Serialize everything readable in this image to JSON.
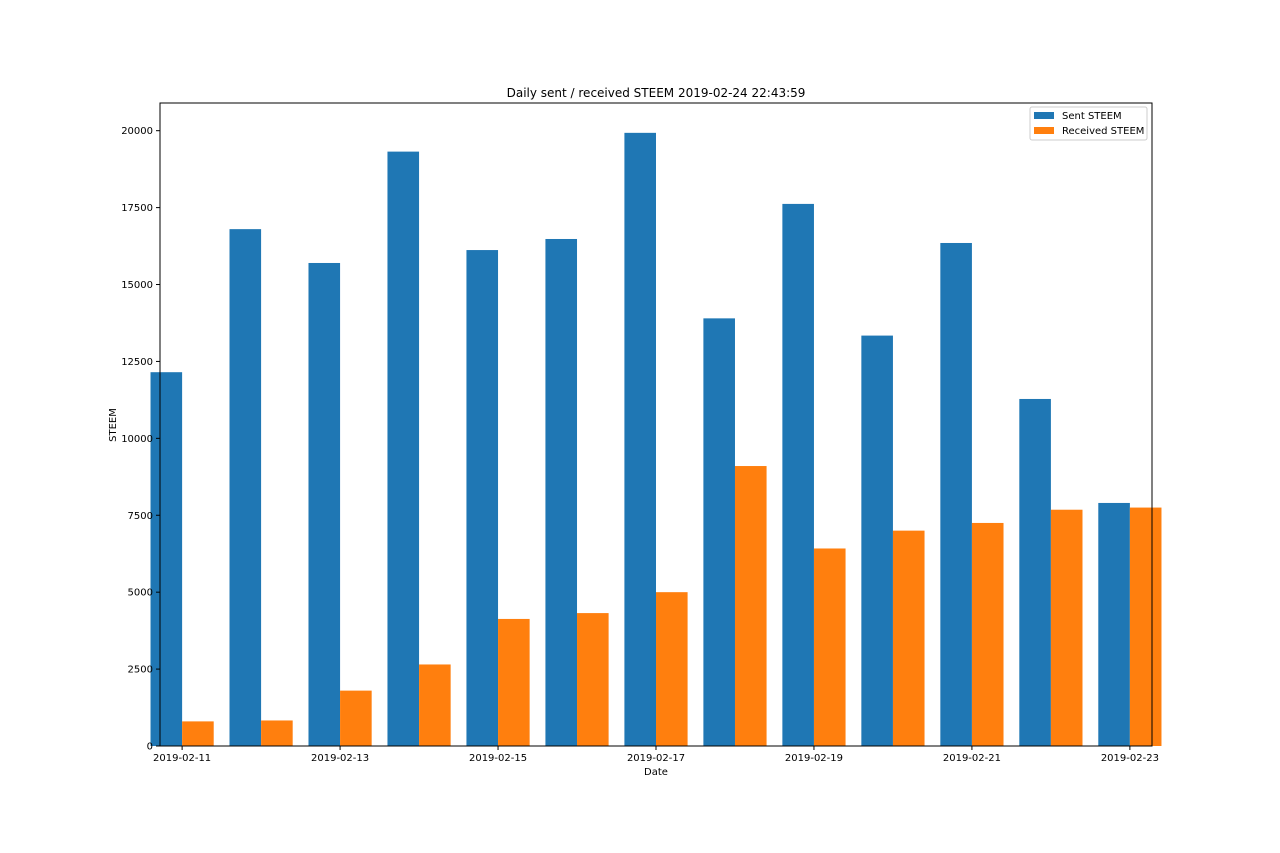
{
  "chart_data": {
    "type": "bar",
    "title": "Daily sent / received STEEM 2019-02-24 22:43:59",
    "xlabel": "Date",
    "ylabel": "STEEM",
    "ylim": [
      0,
      20900
    ],
    "yticks": [
      0,
      2500,
      5000,
      7500,
      10000,
      12500,
      15000,
      17500,
      20000
    ],
    "categories": [
      "2019-02-11",
      "2019-02-12",
      "2019-02-13",
      "2019-02-14",
      "2019-02-15",
      "2019-02-16",
      "2019-02-17",
      "2019-02-18",
      "2019-02-19",
      "2019-02-20",
      "2019-02-21",
      "2019-02-22",
      "2019-02-23"
    ],
    "xtick_labels": [
      "2019-02-11",
      "2019-02-13",
      "2019-02-15",
      "2019-02-17",
      "2019-02-19",
      "2019-02-21",
      "2019-02-23"
    ],
    "series": [
      {
        "name": "Sent STEEM",
        "color": "#1f77b4",
        "values": [
          12150,
          16800,
          15700,
          19320,
          16120,
          16480,
          19930,
          13900,
          17620,
          13340,
          16350,
          11280,
          7900
        ]
      },
      {
        "name": "Received STEEM",
        "color": "#ff7f0e",
        "values": [
          800,
          830,
          1800,
          2650,
          4130,
          4320,
          5000,
          9100,
          6420,
          7000,
          7250,
          7680,
          7750
        ]
      }
    ],
    "legend_position": "top-right",
    "grid": false
  }
}
